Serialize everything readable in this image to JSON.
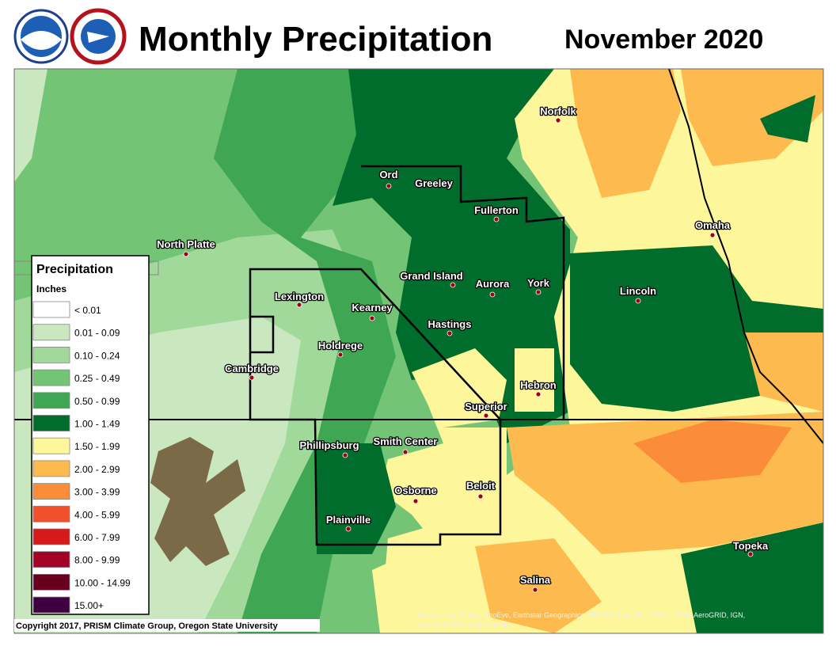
{
  "header": {
    "title": "Monthly Precipitation",
    "date": "November 2020"
  },
  "legend": {
    "title": "Precipitation",
    "units": "Inches",
    "items": [
      {
        "label": "< 0.01",
        "color": "#ffffff"
      },
      {
        "label": "0.01 - 0.09",
        "color": "#c9e8c0"
      },
      {
        "label": "0.10 - 0.24",
        "color": "#a1d99b"
      },
      {
        "label": "0.25 - 0.49",
        "color": "#74c476"
      },
      {
        "label": "0.50 - 0.99",
        "color": "#3fa653"
      },
      {
        "label": "1.00 - 1.49",
        "color": "#006d2c"
      },
      {
        "label": "1.50 - 1.99",
        "color": "#fdf69a"
      },
      {
        "label": "2.00 - 2.99",
        "color": "#fdbb4f"
      },
      {
        "label": "3.00 - 3.99",
        "color": "#fa8c3a"
      },
      {
        "label": "4.00 - 5.99",
        "color": "#f0502c"
      },
      {
        "label": "6.00 - 7.99",
        "color": "#d7191c"
      },
      {
        "label": "8.00 - 9.99",
        "color": "#a50026"
      },
      {
        "label": "10.00 - 14.99",
        "color": "#67001f"
      },
      {
        "label": "15.00+",
        "color": "#3f0040"
      }
    ]
  },
  "cities": [
    "North Platte",
    "Lexington",
    "Kearney",
    "Holdrege",
    "Cambridge",
    "Ord",
    "Greeley",
    "Fullerton",
    "Grand Island",
    "Aurora",
    "York",
    "Hastings",
    "Hebron",
    "Superior",
    "Phillipsburg",
    "Smith Center",
    "Osborne",
    "Beloit",
    "Plainville",
    "Salina",
    "Norfolk",
    "Omaha",
    "Lincoln",
    "Topeka"
  ],
  "footer": {
    "copyright": "Copyright 2017, PRISM Climate Group, Oregon State University",
    "source": [
      "Source: Esri, Maxar, GeoEye, Earthstar Geographics, CNES/Airbus DS, USDA, USGS, AeroGRID, IGN,",
      "and the GIS User Community"
    ]
  }
}
